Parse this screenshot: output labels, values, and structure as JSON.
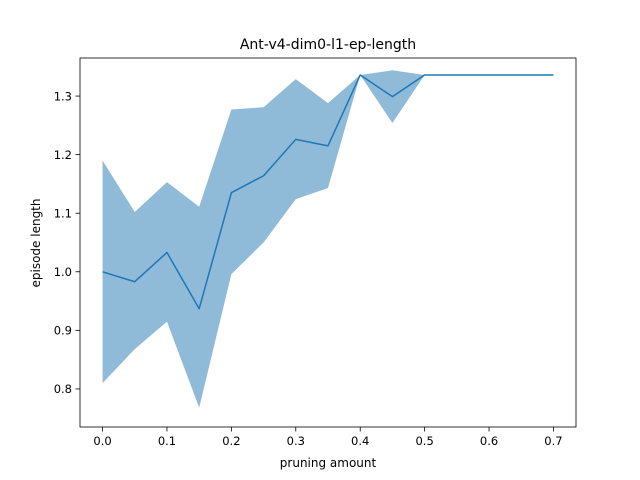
{
  "chart_data": {
    "type": "line",
    "title": "Ant-v4-dim0-l1-ep-length",
    "xlabel": "pruning amount",
    "ylabel": "episode length",
    "xlim": [
      -0.035,
      0.735
    ],
    "ylim": [
      0.735,
      1.365
    ],
    "x_ticks": [
      {
        "value": 0.0,
        "label": "0.0"
      },
      {
        "value": 0.1,
        "label": "0.1"
      },
      {
        "value": 0.2,
        "label": "0.2"
      },
      {
        "value": 0.3,
        "label": "0.3"
      },
      {
        "value": 0.4,
        "label": "0.4"
      },
      {
        "value": 0.5,
        "label": "0.5"
      },
      {
        "value": 0.6,
        "label": "0.6"
      },
      {
        "value": 0.7,
        "label": "0.7"
      }
    ],
    "y_ticks": [
      {
        "value": 0.8,
        "label": "0.8"
      },
      {
        "value": 0.9,
        "label": "0.9"
      },
      {
        "value": 1.0,
        "label": "1.0"
      },
      {
        "value": 1.1,
        "label": "1.1"
      },
      {
        "value": 1.2,
        "label": "1.2"
      },
      {
        "value": 1.3,
        "label": "1.3"
      }
    ],
    "grid": false,
    "x": [
      0.0,
      0.05,
      0.1,
      0.15,
      0.2,
      0.25,
      0.3,
      0.35,
      0.4,
      0.45,
      0.5,
      0.55,
      0.6,
      0.65,
      0.7
    ],
    "series": [
      {
        "values": [
          1.0,
          0.983,
          1.033,
          0.937,
          1.135,
          1.164,
          1.226,
          1.215,
          1.336,
          1.299,
          1.336,
          1.336,
          1.336,
          1.336,
          1.336
        ],
        "lower": [
          0.81,
          0.868,
          0.915,
          0.768,
          0.996,
          1.05,
          1.124,
          1.143,
          1.336,
          1.254,
          1.336,
          1.336,
          1.336,
          1.336,
          1.336
        ],
        "upper": [
          1.19,
          1.102,
          1.153,
          1.111,
          1.277,
          1.281,
          1.329,
          1.288,
          1.336,
          1.344,
          1.336,
          1.336,
          1.336,
          1.336,
          1.336
        ],
        "color": "#1f77b4",
        "band_color": "#1f77b4",
        "band_opacity": 0.5
      }
    ]
  }
}
